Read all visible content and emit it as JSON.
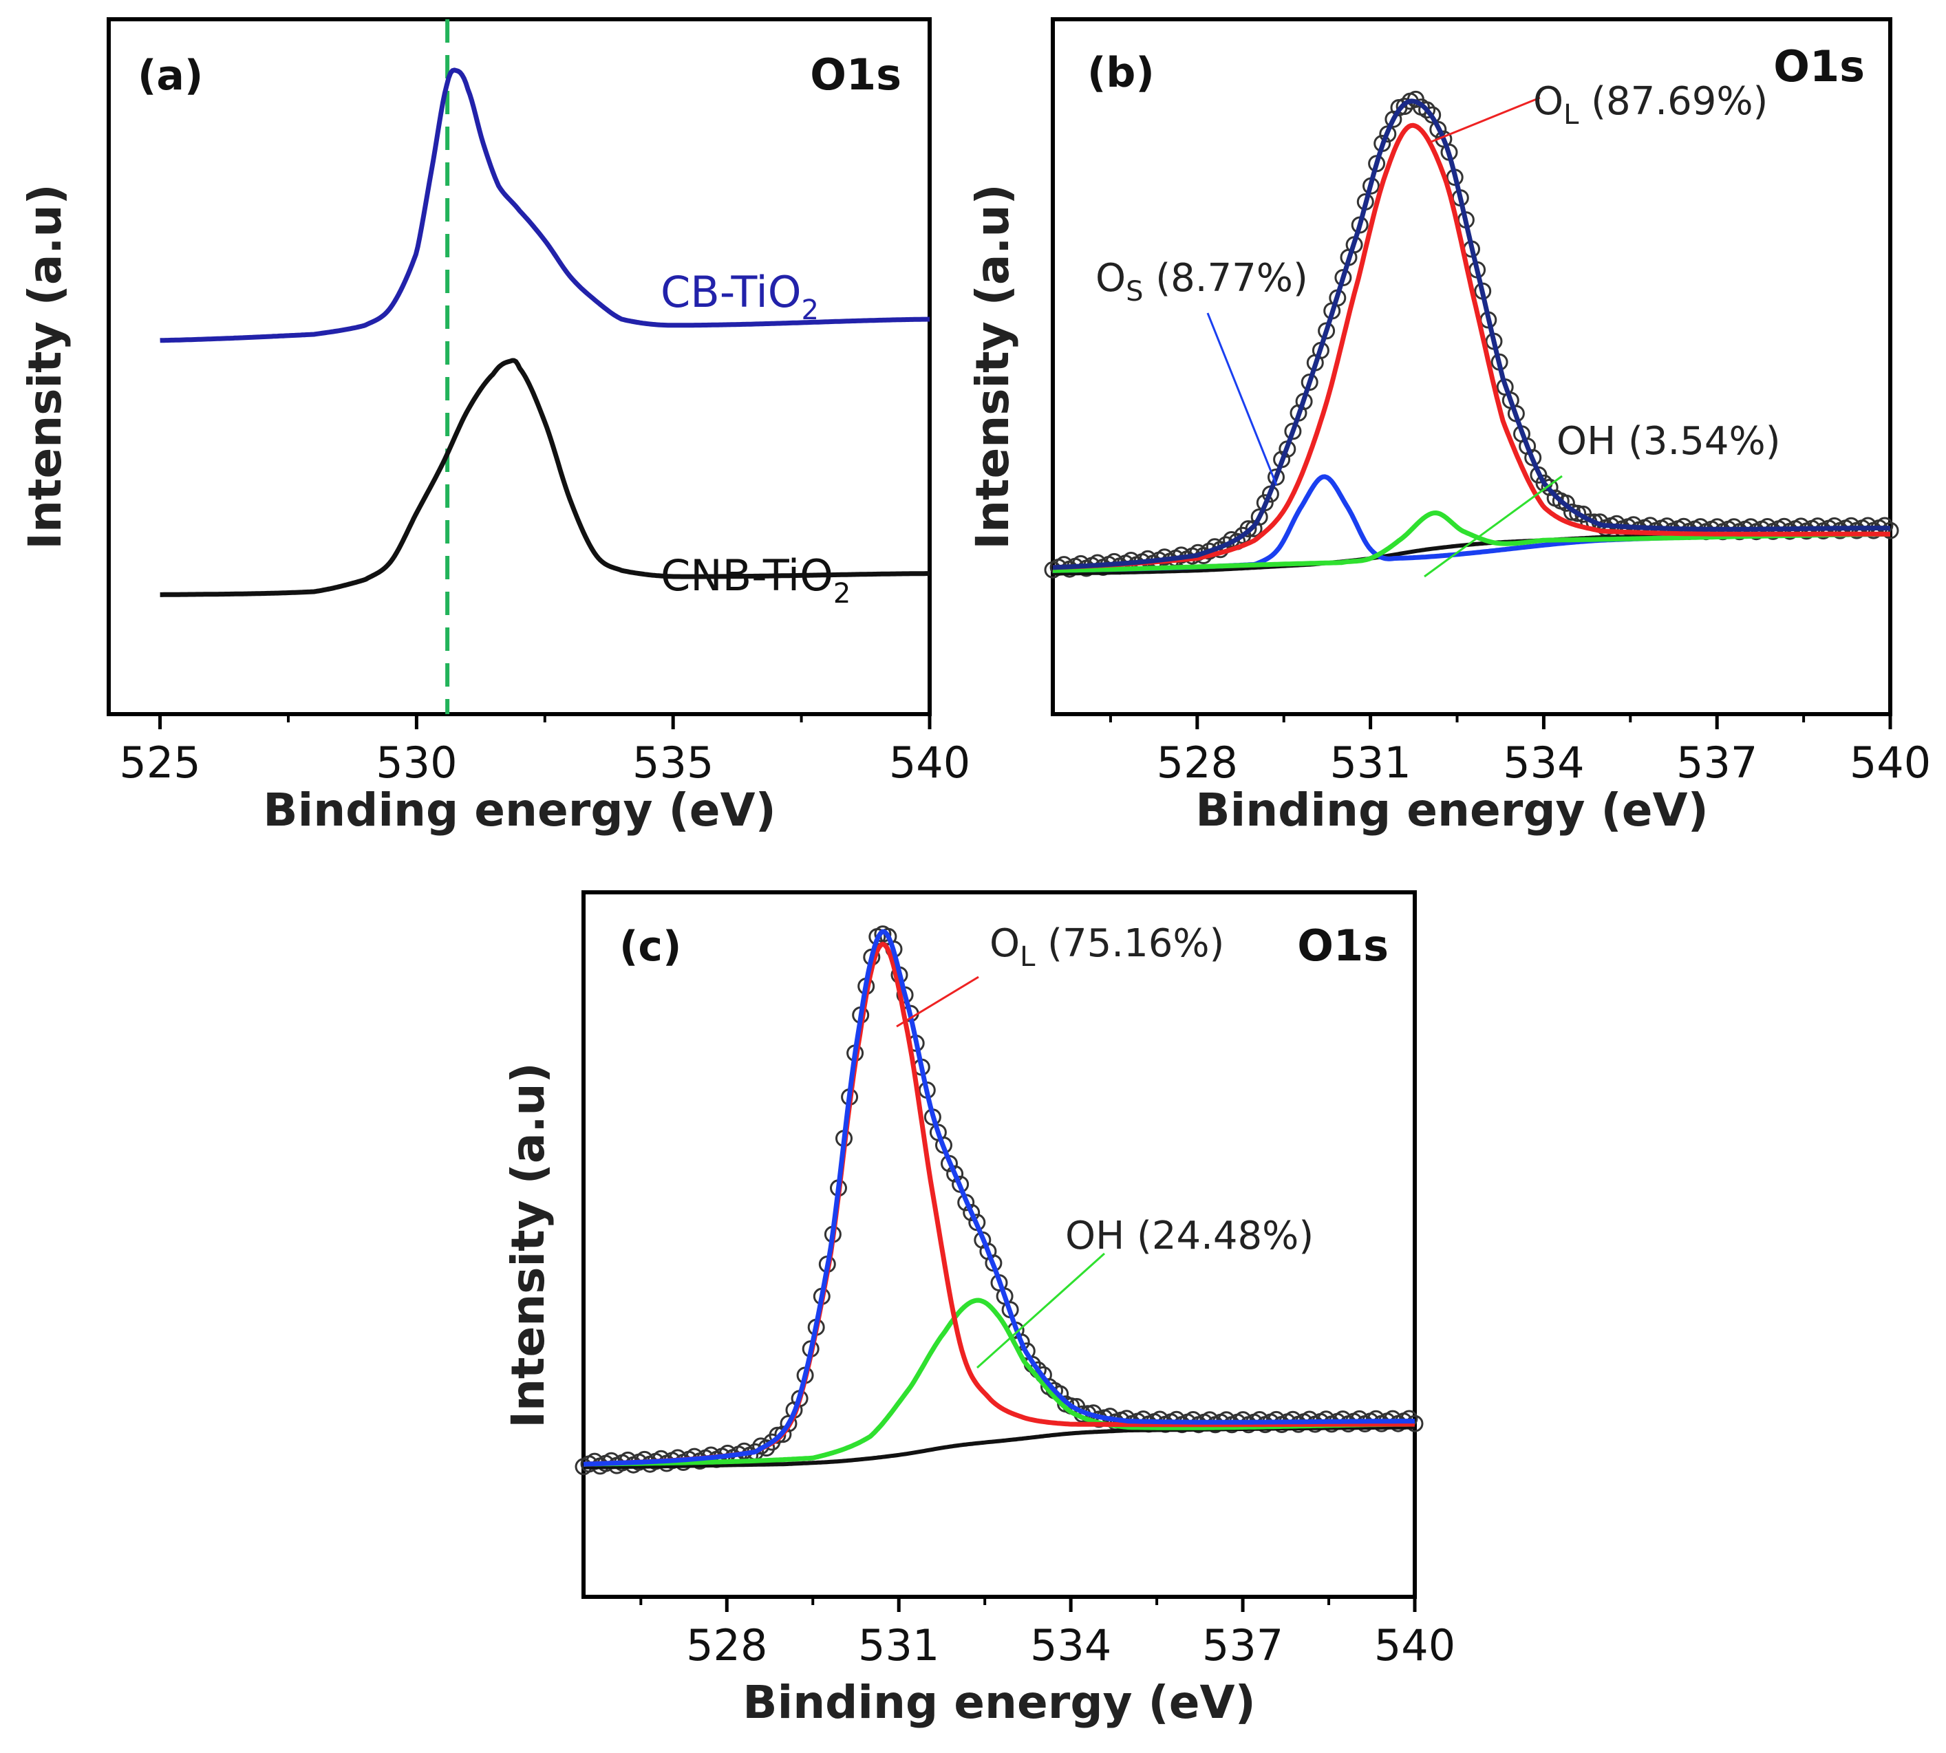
{
  "chart_data": [
    {
      "type": "line",
      "panel_label": "(a)",
      "corner_label": "O1s",
      "xlabel": "Binding energy (eV)",
      "ylabel": "Intensity (a.u)",
      "xlim": [
        524,
        540
      ],
      "ylim": [
        0,
        100
      ],
      "xticks": [
        525,
        530,
        535,
        540
      ],
      "xticks_minor": [
        527.5,
        532.5,
        537.5
      ],
      "show_ytick_labels": false,
      "reference_line": {
        "x": 530.6,
        "color": "#22b35a",
        "style": "dashed"
      },
      "series": [
        {
          "name": "CB-TiO2",
          "label": {
            "main": "CB-TiO",
            "sub": "2"
          },
          "color": "#2222aa",
          "x": [
            525,
            528,
            529,
            529.5,
            530,
            530.3,
            530.6,
            530.8,
            531,
            531.3,
            531.6,
            532,
            532.5,
            533,
            533.5,
            534,
            535,
            540
          ],
          "y": [
            51.5,
            52.5,
            54,
            57,
            66,
            80,
            94,
            96,
            93,
            84,
            77,
            73,
            68,
            62,
            58,
            55,
            54,
            55
          ]
        },
        {
          "name": "CNB-TiO2",
          "label": {
            "main": "CNB-TiO",
            "sub": "2"
          },
          "color": "#111111",
          "x": [
            525,
            528,
            529,
            529.5,
            530,
            530.5,
            531,
            531.5,
            531.8,
            532,
            532.5,
            533,
            533.5,
            534,
            535,
            540
          ],
          "y": [
            9.5,
            10,
            12,
            15,
            23,
            31,
            40,
            46,
            48,
            47,
            38,
            25,
            16,
            13.5,
            12.5,
            13
          ]
        }
      ]
    },
    {
      "type": "line",
      "panel_label": "(b)",
      "corner_label": "O1s",
      "xlabel": "Binding energy (eV)",
      "ylabel": "Intensity (a.u)",
      "xlim": [
        525.5,
        540
      ],
      "ylim": [
        0,
        100
      ],
      "xticks": [
        528,
        531,
        534,
        537,
        540
      ],
      "xticks_minor": [
        526.5,
        529.5,
        532.5,
        535.5,
        538.5
      ],
      "show_ytick_labels": false,
      "series": [
        {
          "name": "Background",
          "color": "#111111",
          "x": [
            525.5,
            528,
            530,
            531,
            532,
            533,
            534,
            535,
            540
          ],
          "y": [
            13,
            13.5,
            14.5,
            15.5,
            17,
            18,
            18.5,
            19,
            19.5
          ]
        },
        {
          "name": "OS fit",
          "color": "#1a3ff0",
          "x": [
            525.5,
            529,
            529.4,
            529.8,
            530.2,
            530.6,
            531,
            531.4,
            535,
            540
          ],
          "y": [
            13.5,
            14.5,
            17,
            24,
            29,
            24,
            17,
            15.5,
            18.5,
            19.5
          ]
        },
        {
          "name": "OH fit",
          "color": "#2fe02f",
          "x": [
            525.5,
            530.5,
            531,
            531.5,
            532.1,
            532.6,
            533.2,
            534,
            540
          ],
          "y": [
            13.5,
            14.8,
            15.5,
            18.5,
            23,
            20,
            18,
            18.5,
            19.5
          ]
        },
        {
          "name": "OL fit",
          "color": "#ee2222",
          "x": [
            525.5,
            528,
            529,
            529.6,
            530.2,
            530.8,
            531.3,
            531.75,
            532.3,
            532.8,
            533.3,
            534,
            535,
            540
          ],
          "y": [
            14,
            15.5,
            18.5,
            25,
            40,
            62,
            80,
            87,
            78,
            58,
            38,
            24,
            20,
            19.5
          ]
        },
        {
          "name": "Envelope",
          "color": "#1a2a88",
          "x": [
            525.5,
            528,
            529,
            529.6,
            530.2,
            530.8,
            531.3,
            531.75,
            532.3,
            532.8,
            533.3,
            534,
            535,
            540
          ],
          "y": [
            14,
            16,
            21,
            35,
            52,
            70,
            86,
            91,
            84,
            65,
            45,
            28,
            21,
            20.5
          ]
        }
      ],
      "annotations": [
        {
          "main": "O",
          "sub": "L",
          "rest": " (87.69%)",
          "color": "#ee2222"
        },
        {
          "main": "O",
          "sub": "S",
          "rest": " (8.77%)",
          "color": "#1a3ff0"
        },
        {
          "main": "OH",
          "sub": "",
          "rest": " (3.54%)",
          "color": "#2fe02f"
        }
      ]
    },
    {
      "type": "line",
      "panel_label": "(c)",
      "corner_label": "O1s",
      "xlabel": "Binding energy (eV)",
      "ylabel": "Intensity (a.u)",
      "xlim": [
        525.5,
        540
      ],
      "ylim": [
        0,
        100
      ],
      "xticks": [
        528,
        531,
        534,
        537,
        540
      ],
      "xticks_minor": [
        526.5,
        529.5,
        532.5,
        535.5,
        538.5
      ],
      "show_ytick_labels": false,
      "series": [
        {
          "name": "Background",
          "color": "#111111",
          "x": [
            525.5,
            529,
            530,
            531,
            532,
            533,
            534,
            535,
            540
          ],
          "y": [
            11,
            11.5,
            12,
            13,
            14.5,
            15.5,
            16.5,
            17,
            17.5
          ]
        },
        {
          "name": "OH fit",
          "color": "#2fe02f",
          "x": [
            525.5,
            529.5,
            530.5,
            531.2,
            531.8,
            532.3,
            532.7,
            533.2,
            534,
            535,
            540
          ],
          "y": [
            11.5,
            12.5,
            16,
            24,
            33,
            38,
            36,
            28,
            20,
            17.5,
            18
          ]
        },
        {
          "name": "OL fit",
          "color": "#ee2222",
          "x": [
            525.5,
            528.5,
            529.2,
            529.8,
            530.3,
            530.7,
            531.1,
            531.6,
            532.1,
            532.6,
            533.2,
            534,
            540
          ],
          "y": [
            11.5,
            13.5,
            20,
            45,
            80,
            96,
            84,
            55,
            30,
            22,
            19,
            18,
            18
          ]
        },
        {
          "name": "Envelope",
          "color": "#1a3ff0",
          "x": [
            525.5,
            528.5,
            529.2,
            529.8,
            530.3,
            530.7,
            531.1,
            531.6,
            532.1,
            532.6,
            533.2,
            534,
            535,
            540
          ],
          "y": [
            11.5,
            13.5,
            20.5,
            46,
            82,
            98,
            88,
            68,
            56,
            45,
            30,
            21,
            18.5,
            18.5
          ]
        }
      ],
      "annotations": [
        {
          "main": "O",
          "sub": "L",
          "rest": " (75.16%)",
          "color": "#ee2222"
        },
        {
          "main": "OH",
          "sub": "",
          "rest": " (24.48%)",
          "color": "#2fe02f"
        }
      ]
    }
  ]
}
